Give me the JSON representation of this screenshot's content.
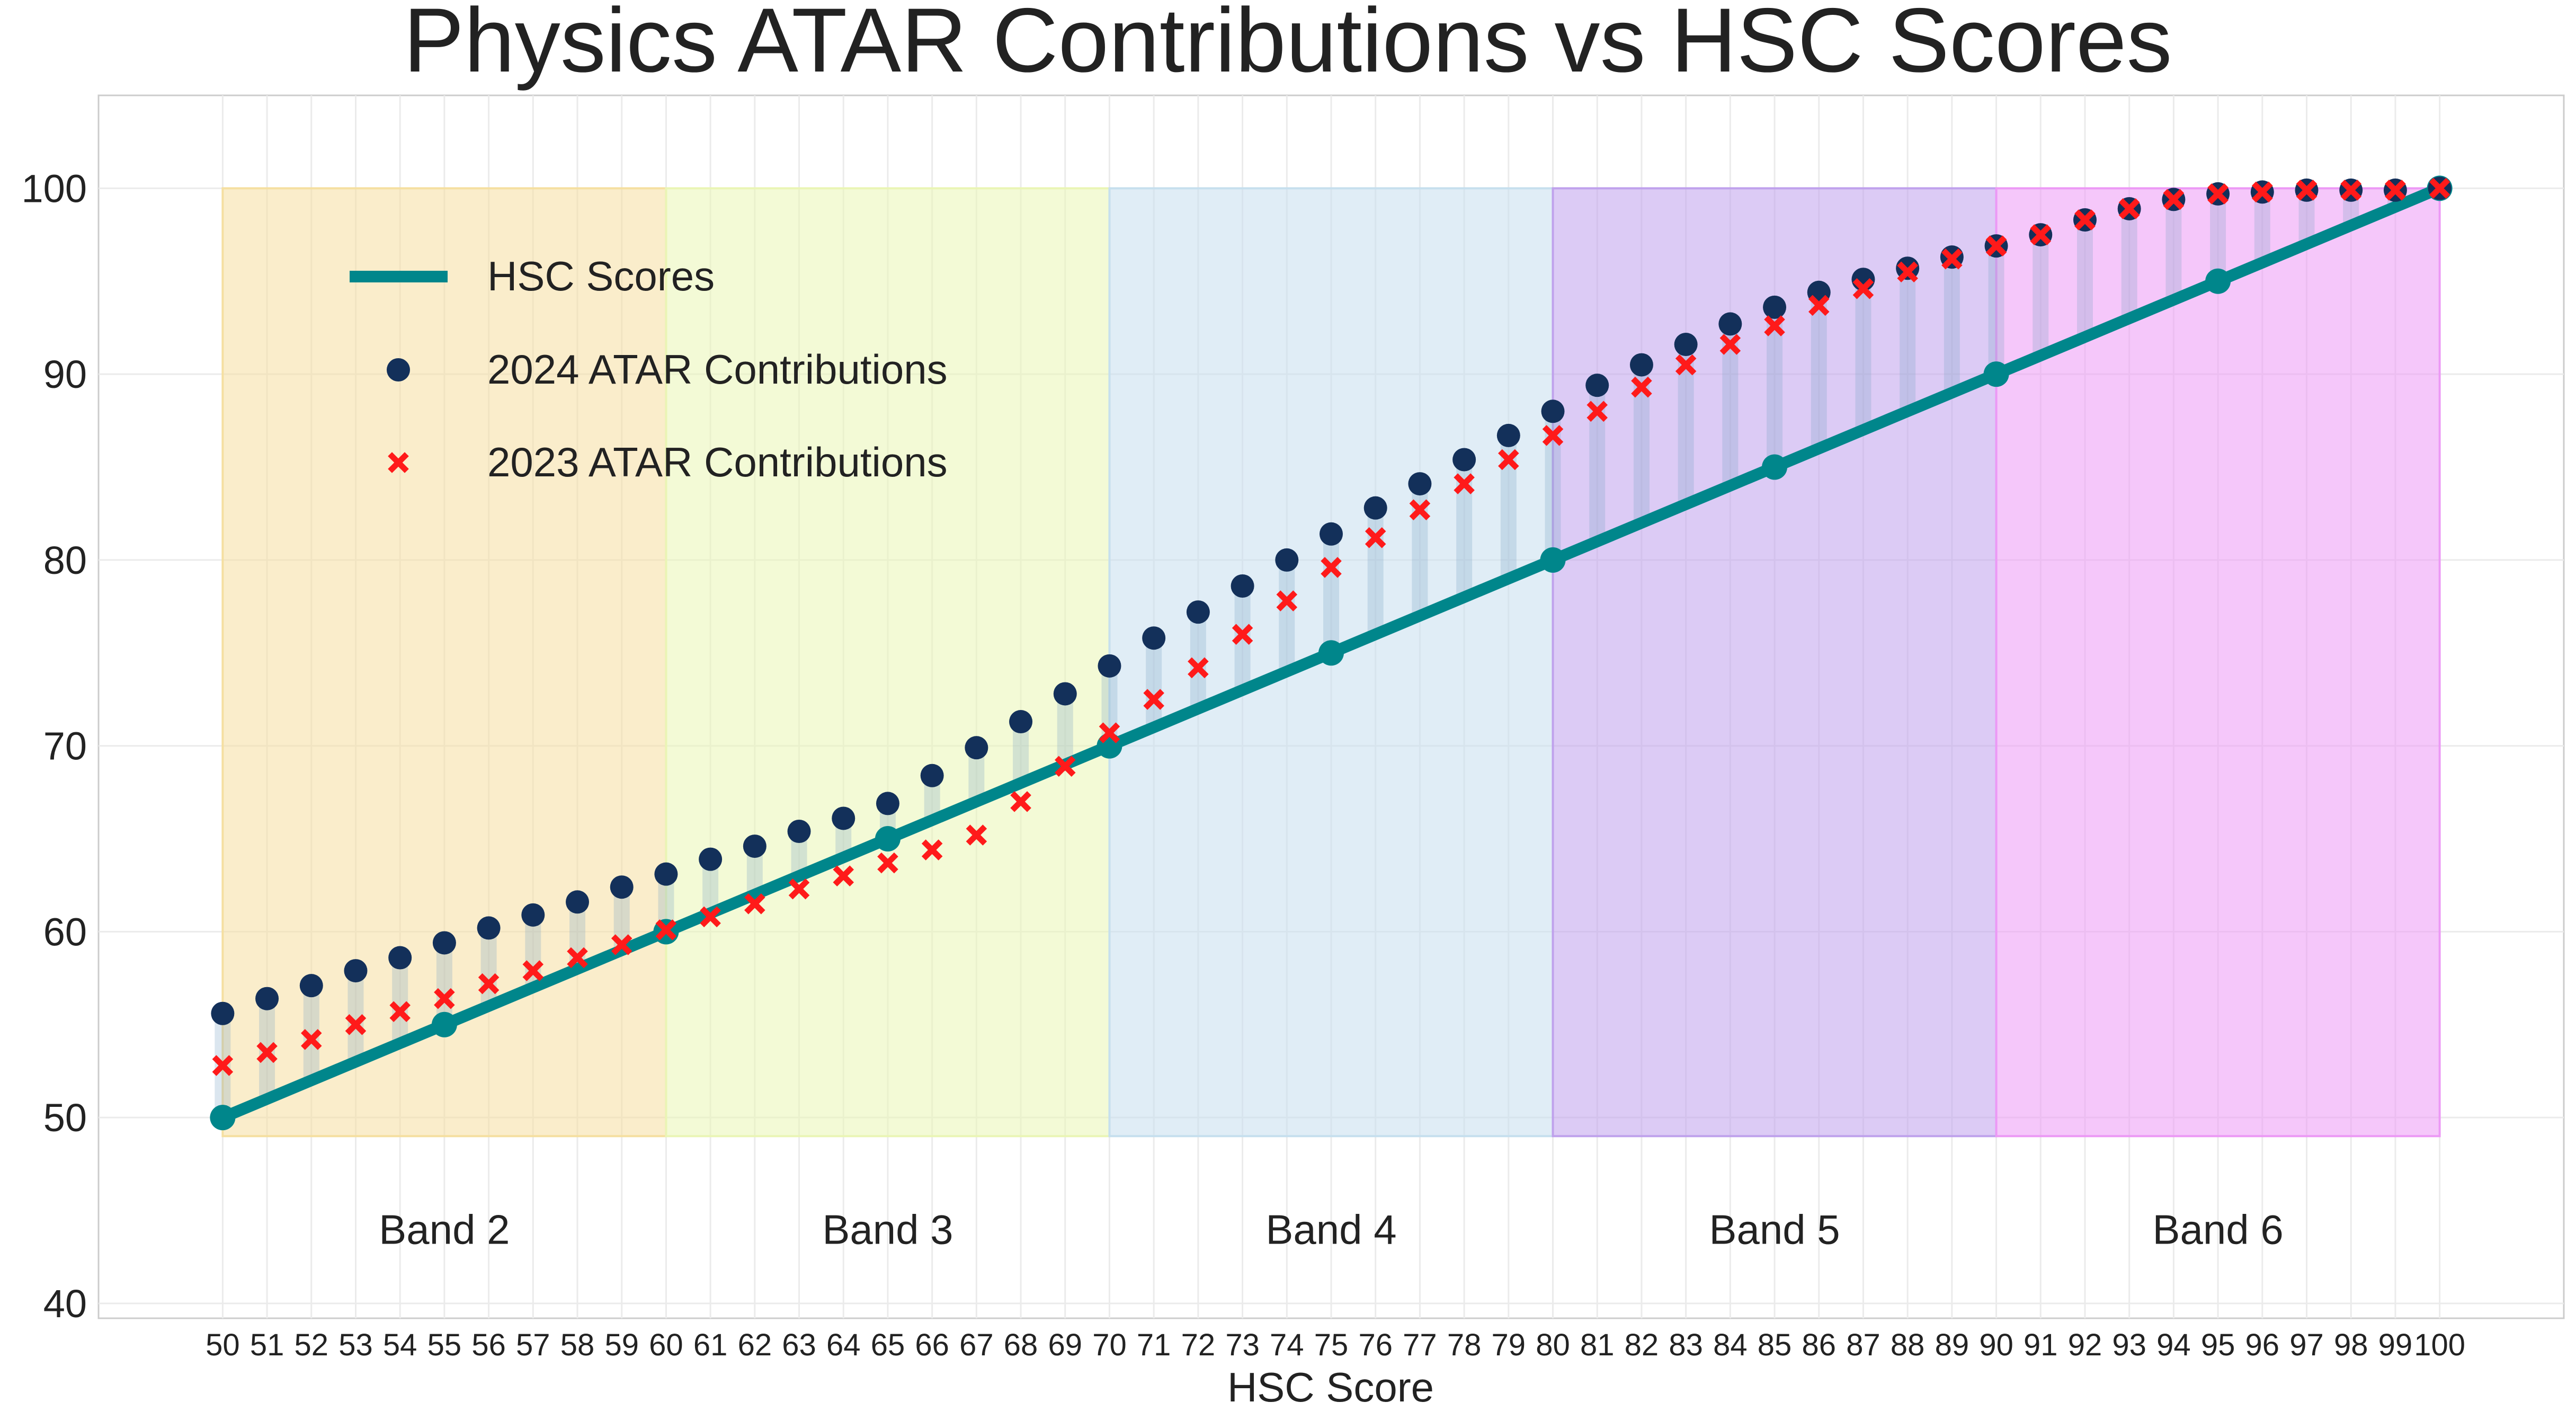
{
  "chart_data": {
    "type": "line",
    "title": "Physics ATAR Contributions vs HSC Scores",
    "xlabel": "HSC Score",
    "ylabel": "",
    "xlim": [
      47.2,
      102.8
    ],
    "ylim": [
      39.2,
      105
    ],
    "grid": true,
    "legend_position": "top-left",
    "x": [
      50,
      51,
      52,
      53,
      54,
      55,
      56,
      57,
      58,
      59,
      60,
      61,
      62,
      63,
      64,
      65,
      66,
      67,
      68,
      69,
      70,
      71,
      72,
      73,
      74,
      75,
      76,
      77,
      78,
      79,
      80,
      81,
      82,
      83,
      84,
      85,
      86,
      87,
      88,
      89,
      90,
      91,
      92,
      93,
      94,
      95,
      96,
      97,
      98,
      99,
      100
    ],
    "x_tick_labels": [
      "50",
      "51",
      "52",
      "53",
      "54",
      "55",
      "56",
      "57",
      "58",
      "59",
      "60",
      "61",
      "62",
      "63",
      "64",
      "65",
      "66",
      "67",
      "68",
      "69",
      "70",
      "71",
      "72",
      "73",
      "74",
      "75",
      "76",
      "77",
      "78",
      "79",
      "80",
      "81",
      "82",
      "83",
      "84",
      "85",
      "86",
      "87",
      "88",
      "89",
      "90",
      "91",
      "92",
      "93",
      "94",
      "95",
      "96",
      "97",
      "98",
      "99",
      "100"
    ],
    "y_ticks": [
      40,
      50,
      60,
      70,
      80,
      90,
      100
    ],
    "y_tick_labels": [
      "40",
      "50",
      "60",
      "70",
      "80",
      "90",
      "100"
    ],
    "series": [
      {
        "name": "HSC Scores",
        "style": "line",
        "color": "#00868B",
        "marker_x": [
          50,
          55,
          60,
          65,
          70,
          75,
          80,
          85,
          90,
          95,
          100
        ],
        "values": [
          50,
          51,
          52,
          53,
          54,
          55,
          56,
          57,
          58,
          59,
          60,
          61,
          62,
          63,
          64,
          65,
          66,
          67,
          68,
          69,
          70,
          71,
          72,
          73,
          74,
          75,
          76,
          77,
          78,
          79,
          80,
          81,
          82,
          83,
          84,
          85,
          86,
          87,
          88,
          89,
          90,
          91,
          92,
          93,
          94,
          95,
          96,
          97,
          98,
          99,
          100
        ]
      },
      {
        "name": "2024 ATAR Contributions",
        "style": "scatter-circle",
        "color": "#13305A",
        "values": [
          55.6,
          56.4,
          57.1,
          57.9,
          58.6,
          59.4,
          60.2,
          60.9,
          61.6,
          62.4,
          63.1,
          63.9,
          64.6,
          65.4,
          66.1,
          66.9,
          68.4,
          69.9,
          71.3,
          72.8,
          74.3,
          75.8,
          77.2,
          78.6,
          80.0,
          81.4,
          82.8,
          84.1,
          85.4,
          86.7,
          88.0,
          89.4,
          90.5,
          91.6,
          92.7,
          93.6,
          94.4,
          95.1,
          95.7,
          96.3,
          96.9,
          97.5,
          98.3,
          98.9,
          99.4,
          99.7,
          99.8,
          99.9,
          99.9,
          99.9,
          100.0
        ]
      },
      {
        "name": "2023 ATAR Contributions",
        "style": "scatter-x",
        "color": "#FF1A1A",
        "values": [
          52.8,
          53.5,
          54.2,
          55.0,
          55.7,
          56.4,
          57.2,
          57.9,
          58.6,
          59.3,
          60.1,
          60.8,
          61.5,
          62.3,
          63.0,
          63.7,
          64.4,
          65.2,
          67.0,
          68.9,
          70.7,
          72.5,
          74.2,
          76.0,
          77.8,
          79.6,
          81.2,
          82.7,
          84.1,
          85.4,
          86.7,
          88.0,
          89.3,
          90.5,
          91.6,
          92.6,
          93.7,
          94.6,
          95.5,
          96.2,
          96.9,
          97.5,
          98.3,
          98.9,
          99.4,
          99.7,
          99.8,
          99.9,
          99.9,
          99.9,
          100.0
        ]
      }
    ],
    "bands": [
      {
        "label": "Band 2",
        "from": 50,
        "to": 60,
        "color": "#F5DFA0"
      },
      {
        "label": "Band 3",
        "from": 60,
        "to": 70,
        "color": "#EAF5B5"
      },
      {
        "label": "Band 4",
        "from": 70,
        "to": 80,
        "color": "#C6DFEE"
      },
      {
        "label": "Band 5",
        "from": 80,
        "to": 90,
        "color": "#BFA1EC"
      },
      {
        "label": "Band 6",
        "from": 90,
        "to": 100,
        "color": "#EC99F5"
      }
    ],
    "band_y_range": [
      49,
      100
    ]
  }
}
